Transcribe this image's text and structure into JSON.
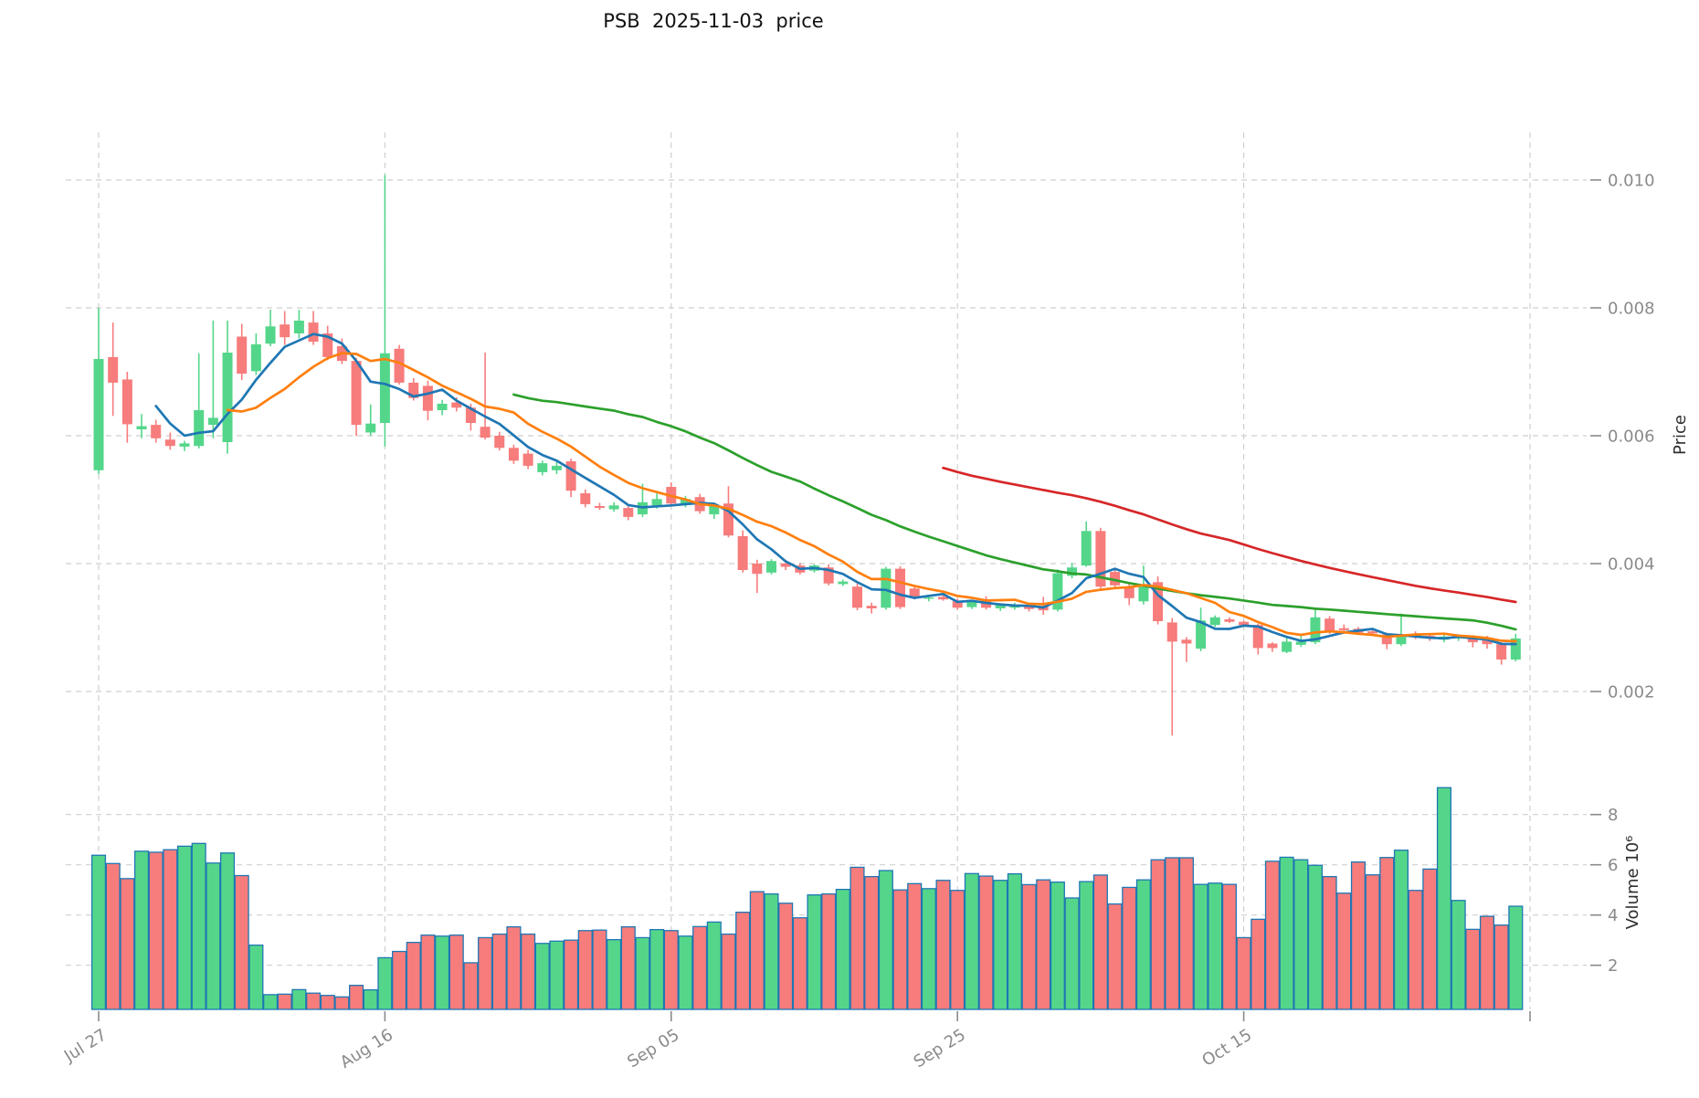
{
  "page": {
    "title": "PSB  2025-11-03  price"
  },
  "chart_data": {
    "type": "candlestick",
    "title": "PSB  2025-11-03  price",
    "symbol": "PSB",
    "as_of_date": "2025-11-03",
    "start_date": "2025-07-27",
    "end_date": "2025-11-03",
    "n_days": 100,
    "grid": true,
    "legend": null,
    "x_ticks": {
      "labels": [
        "Jul 27",
        "Aug 16",
        "Sep 05",
        "Sep 25",
        "Oct 15"
      ],
      "day_indices": [
        0,
        20,
        40,
        60,
        80
      ],
      "extra_unlabeled_gridline_day": 100,
      "label_rotation_deg": 32
    },
    "price_axis": {
      "label": "Price",
      "side": "right",
      "ticks": [
        0.002,
        0.004,
        0.006,
        0.008,
        0.01
      ],
      "tick_labels": [
        "0.002",
        "0.004",
        "0.006",
        "0.008",
        "0.010"
      ],
      "range": [
        0.00115,
        0.01055
      ]
    },
    "volume_axis": {
      "label": "Volume 10⁶",
      "side": "right",
      "unit": 1000000,
      "ticks": [
        2,
        4,
        6,
        8
      ],
      "tick_labels": [
        "2",
        "4",
        "6",
        "8"
      ],
      "range": [
        0.24,
        9.5
      ]
    },
    "moving_averages": [
      {
        "name": "MA5",
        "window": 5,
        "color": "#1f77b4"
      },
      {
        "name": "MA10",
        "window": 10,
        "color": "#ff7f0e"
      },
      {
        "name": "MA30",
        "window": 30,
        "color": "#2ca02c"
      },
      {
        "name": "MA60",
        "window": 60,
        "color": "#d62728"
      }
    ],
    "colors": {
      "up": "#54d68a",
      "down": "#f77c7c",
      "volume_bar_edge": "#1f77b4",
      "grid": "#cfcfcf",
      "tick_label": "#8a8a8a",
      "axis_label": "#2f2f2f",
      "title": "#111111",
      "background": "#ffffff"
    },
    "ohlc": [
      [
        0.00546,
        0.008,
        0.0054,
        0.0072
      ],
      [
        0.00723,
        0.00777,
        0.00631,
        0.00683
      ],
      [
        0.00688,
        0.007,
        0.00589,
        0.00618
      ],
      [
        0.0061,
        0.00634,
        0.00596,
        0.00615
      ],
      [
        0.00617,
        0.00625,
        0.00589,
        0.00596
      ],
      [
        0.00594,
        0.00605,
        0.00578,
        0.00584
      ],
      [
        0.00583,
        0.00592,
        0.00576,
        0.00588
      ],
      [
        0.00584,
        0.00729,
        0.0058,
        0.0064
      ],
      [
        0.00617,
        0.0078,
        0.00596,
        0.00628
      ],
      [
        0.0059,
        0.0078,
        0.00572,
        0.0073
      ],
      [
        0.00755,
        0.00775,
        0.00687,
        0.00697
      ],
      [
        0.00701,
        0.0076,
        0.00695,
        0.00743
      ],
      [
        0.00744,
        0.00797,
        0.0074,
        0.00771
      ],
      [
        0.00774,
        0.00795,
        0.00742,
        0.00754
      ],
      [
        0.0076,
        0.00797,
        0.00752,
        0.0078
      ],
      [
        0.00777,
        0.00795,
        0.00742,
        0.00747
      ],
      [
        0.0076,
        0.00772,
        0.00718,
        0.00723
      ],
      [
        0.0074,
        0.00752,
        0.00712,
        0.00717
      ],
      [
        0.00717,
        0.00722,
        0.006,
        0.00617
      ],
      [
        0.00605,
        0.00649,
        0.006,
        0.00619
      ],
      [
        0.0062,
        0.01008,
        0.00583,
        0.00729
      ],
      [
        0.00736,
        0.00742,
        0.0068,
        0.00683
      ],
      [
        0.00683,
        0.0069,
        0.00655,
        0.00659
      ],
      [
        0.00678,
        0.00686,
        0.00624,
        0.00639
      ],
      [
        0.0064,
        0.00656,
        0.00632,
        0.0065
      ],
      [
        0.00652,
        0.0066,
        0.00638,
        0.00644
      ],
      [
        0.00644,
        0.0065,
        0.00608,
        0.0062
      ],
      [
        0.00614,
        0.0073,
        0.00594,
        0.00597
      ],
      [
        0.006,
        0.00606,
        0.00577,
        0.00581
      ],
      [
        0.00581,
        0.00586,
        0.00556,
        0.00561
      ],
      [
        0.00572,
        0.00578,
        0.00548,
        0.00553
      ],
      [
        0.00543,
        0.00561,
        0.00538,
        0.00557
      ],
      [
        0.00546,
        0.00559,
        0.0054,
        0.00553
      ],
      [
        0.0056,
        0.00564,
        0.00504,
        0.00514
      ],
      [
        0.0051,
        0.00516,
        0.00488,
        0.00493
      ],
      [
        0.0049,
        0.00495,
        0.00484,
        0.00487
      ],
      [
        0.00485,
        0.00496,
        0.00481,
        0.00491
      ],
      [
        0.00487,
        0.00491,
        0.00468,
        0.00473
      ],
      [
        0.00477,
        0.00525,
        0.00473,
        0.00496
      ],
      [
        0.00491,
        0.00511,
        0.00486,
        0.00501
      ],
      [
        0.0052,
        0.00527,
        0.00491,
        0.00494
      ],
      [
        0.00492,
        0.00506,
        0.00488,
        0.00501
      ],
      [
        0.00504,
        0.00509,
        0.00478,
        0.00482
      ],
      [
        0.00477,
        0.00493,
        0.0047,
        0.0049
      ],
      [
        0.00494,
        0.00521,
        0.00441,
        0.00444
      ],
      [
        0.00443,
        0.00452,
        0.00386,
        0.0039
      ],
      [
        0.004,
        0.00406,
        0.00354,
        0.00384
      ],
      [
        0.00386,
        0.00407,
        0.00383,
        0.00404
      ],
      [
        0.004,
        0.00406,
        0.0039,
        0.00395
      ],
      [
        0.00397,
        0.00401,
        0.00383,
        0.00386
      ],
      [
        0.00389,
        0.00399,
        0.00386,
        0.00397
      ],
      [
        0.00394,
        0.00399,
        0.00366,
        0.00369
      ],
      [
        0.00368,
        0.00375,
        0.00365,
        0.00372
      ],
      [
        0.00364,
        0.00369,
        0.00327,
        0.00331
      ],
      [
        0.00334,
        0.00339,
        0.00322,
        0.0033
      ],
      [
        0.00331,
        0.00395,
        0.00328,
        0.00392
      ],
      [
        0.00392,
        0.00396,
        0.00329,
        0.00332
      ],
      [
        0.00361,
        0.00366,
        0.00344,
        0.00347
      ],
      [
        0.00345,
        0.00351,
        0.00341,
        0.00347
      ],
      [
        0.00348,
        0.00353,
        0.00342,
        0.00344
      ],
      [
        0.00341,
        0.00345,
        0.00328,
        0.00331
      ],
      [
        0.00332,
        0.00343,
        0.00329,
        0.0034
      ],
      [
        0.00344,
        0.00349,
        0.00328,
        0.00331
      ],
      [
        0.0033,
        0.00338,
        0.00326,
        0.00335
      ],
      [
        0.00331,
        0.00339,
        0.00328,
        0.00335
      ],
      [
        0.00333,
        0.00337,
        0.00325,
        0.00329
      ],
      [
        0.00334,
        0.00348,
        0.0032,
        0.00327
      ],
      [
        0.00328,
        0.00391,
        0.00325,
        0.00385
      ],
      [
        0.00381,
        0.00401,
        0.00377,
        0.00394
      ],
      [
        0.00397,
        0.00466,
        0.00395,
        0.00451
      ],
      [
        0.00451,
        0.00456,
        0.00361,
        0.00364
      ],
      [
        0.00387,
        0.00391,
        0.0036,
        0.00366
      ],
      [
        0.00364,
        0.00369,
        0.00335,
        0.00346
      ],
      [
        0.00341,
        0.00397,
        0.00336,
        0.00368
      ],
      [
        0.00371,
        0.0038,
        0.00305,
        0.0031
      ],
      [
        0.00308,
        0.00315,
        0.00131,
        0.00278
      ],
      [
        0.00281,
        0.00285,
        0.00246,
        0.00275
      ],
      [
        0.00267,
        0.00331,
        0.00263,
        0.00311
      ],
      [
        0.00304,
        0.00319,
        0.00301,
        0.00316
      ],
      [
        0.00313,
        0.00316,
        0.00307,
        0.00309
      ],
      [
        0.00309,
        0.00311,
        0.00301,
        0.00304
      ],
      [
        0.00304,
        0.00306,
        0.00258,
        0.00268
      ],
      [
        0.00275,
        0.00277,
        0.00262,
        0.00268
      ],
      [
        0.00262,
        0.00286,
        0.0026,
        0.00278
      ],
      [
        0.00273,
        0.0029,
        0.0027,
        0.00278
      ],
      [
        0.00277,
        0.00331,
        0.00274,
        0.00316
      ],
      [
        0.00314,
        0.00318,
        0.0029,
        0.00294
      ],
      [
        0.00299,
        0.00305,
        0.0029,
        0.00296
      ],
      [
        0.00298,
        0.00301,
        0.00289,
        0.00292
      ],
      [
        0.00294,
        0.00297,
        0.00288,
        0.00291
      ],
      [
        0.00289,
        0.00292,
        0.00266,
        0.00274
      ],
      [
        0.00274,
        0.00322,
        0.00271,
        0.00288
      ],
      [
        0.0029,
        0.00294,
        0.00282,
        0.00285
      ],
      [
        0.00287,
        0.00291,
        0.00279,
        0.00283
      ],
      [
        0.00281,
        0.00289,
        0.00277,
        0.00286
      ],
      [
        0.00283,
        0.00288,
        0.00279,
        0.00286
      ],
      [
        0.00285,
        0.00288,
        0.00269,
        0.00277
      ],
      [
        0.00284,
        0.00287,
        0.00267,
        0.00274
      ],
      [
        0.00274,
        0.00277,
        0.00242,
        0.0025
      ],
      [
        0.0025,
        0.0029,
        0.00247,
        0.00283
      ]
    ],
    "volume_millions": [
      6.38,
      6.05,
      5.45,
      6.54,
      6.5,
      6.6,
      6.74,
      6.85,
      6.07,
      6.47,
      5.57,
      2.8,
      0.83,
      0.85,
      1.03,
      0.89,
      0.8,
      0.74,
      1.2,
      1.02,
      2.3,
      2.55,
      2.91,
      3.2,
      3.16,
      3.2,
      2.1,
      3.1,
      3.24,
      3.53,
      3.24,
      2.87,
      2.96,
      3.0,
      3.38,
      3.4,
      3.02,
      3.53,
      3.1,
      3.42,
      3.38,
      3.16,
      3.54,
      3.72,
      3.24,
      4.11,
      4.93,
      4.84,
      4.47,
      3.89,
      4.8,
      4.84,
      5.02,
      5.9,
      5.53,
      5.77,
      5.0,
      5.25,
      5.05,
      5.38,
      4.98,
      5.65,
      5.55,
      5.38,
      5.64,
      5.21,
      5.4,
      5.31,
      4.68,
      5.33,
      5.59,
      4.44,
      5.1,
      5.4,
      6.2,
      6.28,
      6.28,
      5.22,
      5.27,
      5.22,
      3.1,
      3.83,
      6.14,
      6.3,
      6.2,
      5.98,
      5.53,
      4.87,
      6.11,
      5.6,
      6.29,
      6.58,
      4.98,
      5.83,
      9.07,
      4.58,
      3.43,
      3.95,
      3.6,
      4.35
    ]
  }
}
